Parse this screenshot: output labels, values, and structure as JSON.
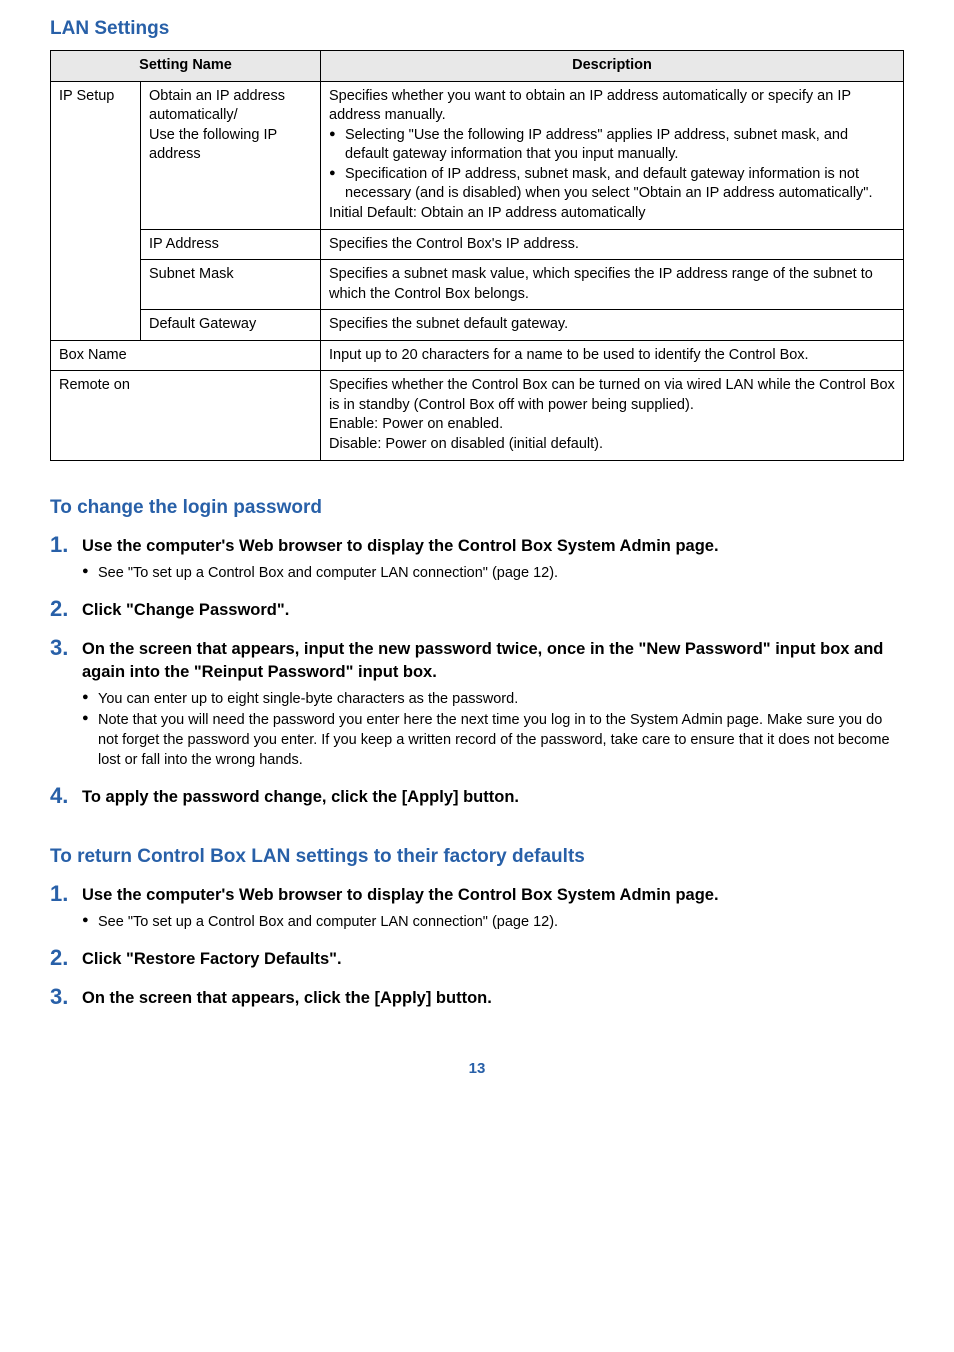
{
  "page_number": "13",
  "colors": {
    "accent": "#2860a8",
    "header_bg": "#e8e8e8",
    "border": "#000000"
  },
  "lan_settings": {
    "title": "LAN Settings",
    "headers": {
      "name": "Setting Name",
      "desc": "Description"
    },
    "rows": [
      {
        "group": "IP Setup",
        "name_line1": "Obtain an IP address automatically/",
        "name_line2": "Use the following IP address",
        "desc_intro": "Specifies whether you want to obtain an IP address automatically or specify an IP address manually.",
        "desc_b1": "Selecting \"Use the following IP address\" applies IP address, subnet mask, and default gateway information that you input manually.",
        "desc_b2": "Specification of IP address, subnet mask, and default gateway information is not necessary (and is disabled) when you select \"Obtain an IP address automatically\".",
        "desc_outro": "Initial Default: Obtain an IP address automatically"
      },
      {
        "name": "IP Address",
        "desc": "Specifies the Control Box's IP address."
      },
      {
        "name": "Subnet Mask",
        "desc": "Specifies a subnet mask value, which specifies the IP address range of the subnet to which the Control Box belongs."
      },
      {
        "name": "Default Gateway",
        "desc": "Specifies the subnet default gateway."
      },
      {
        "name": "Box Name",
        "desc": "Input up to 20 characters for a name to be used to identify the Control Box."
      },
      {
        "name": "Remote on",
        "desc_l1": "Specifies whether the Control Box can be turned on via wired LAN while the Control Box is in standby (Control Box off with power being supplied).",
        "desc_l2": "Enable: Power on enabled.",
        "desc_l3": "Disable: Power on disabled (initial default)."
      }
    ]
  },
  "change_password": {
    "title": "To change the login password",
    "steps": [
      {
        "title": "Use the computer's Web browser to display the Control Box System Admin page.",
        "bullets": [
          "See \"To set up a Control Box and computer LAN connection\" (page 12)."
        ]
      },
      {
        "title": "Click \"Change Password\"."
      },
      {
        "title": "On the screen that appears, input the new password twice, once in the \"New Password\" input box and again into the \"Reinput Password\" input box.",
        "bullets": [
          "You can enter up to eight single-byte characters as the password.",
          "Note that you will need the password you enter here the next time you log in to the System Admin page. Make sure you do not forget the password you enter. If you keep a written record of the password, take care to ensure that it does not become lost or fall into the wrong hands."
        ]
      },
      {
        "title": "To apply the password change, click the [Apply] button."
      }
    ]
  },
  "factory_defaults": {
    "title": "To return Control Box LAN settings to their factory defaults",
    "steps": [
      {
        "title": "Use the computer's Web browser to display the Control Box System Admin page.",
        "bullets": [
          "See \"To set up a Control Box and computer LAN connection\" (page 12)."
        ]
      },
      {
        "title": "Click \"Restore Factory Defaults\"."
      },
      {
        "title": "On the screen that appears, click the [Apply] button."
      }
    ]
  }
}
